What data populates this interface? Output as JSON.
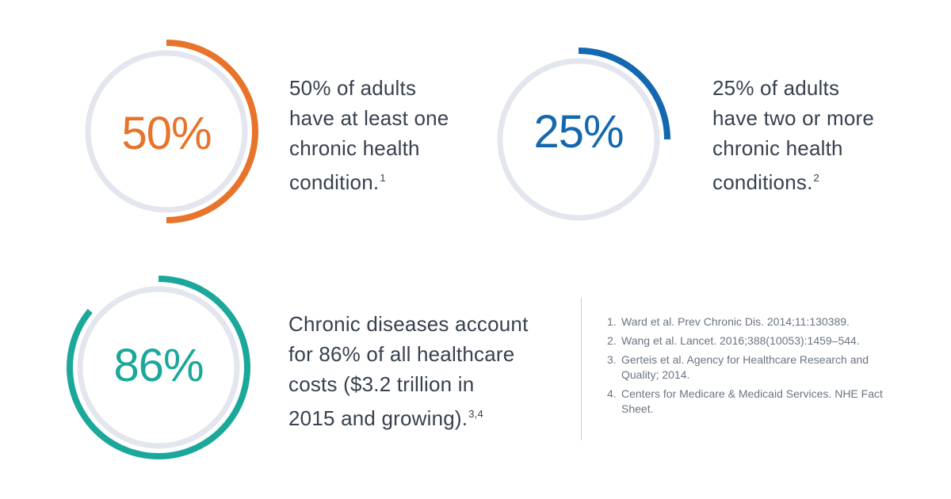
{
  "colors": {
    "track": "#e3e6ee",
    "orange": "#e8732a",
    "blue": "#1468b0",
    "teal": "#1ba89b",
    "text": "#37414f",
    "refs": "#6b7482"
  },
  "chart_data": [
    {
      "type": "donut",
      "value": 50,
      "unit": "%",
      "label": "50%",
      "color": "#e8732a",
      "text_lines": [
        "50% of adults",
        "have at least one",
        "chronic health",
        "condition."
      ],
      "footnote": "1"
    },
    {
      "type": "donut",
      "value": 25,
      "unit": "%",
      "label": "25%",
      "color": "#1468b0",
      "text_lines": [
        "25% of adults",
        "have two or more",
        "chronic health",
        "conditions."
      ],
      "footnote": "2"
    },
    {
      "type": "donut",
      "value": 86,
      "unit": "%",
      "label": "86%",
      "color": "#1ba89b",
      "text_lines": [
        "Chronic diseases account",
        "for 86% of all healthcare",
        "costs ($3.2 trillion in",
        "2015 and growing)."
      ],
      "footnote": "3,4"
    }
  ],
  "references": [
    {
      "num": "1.",
      "text": "Ward et al. Prev Chronic Dis. 2014;11:130389."
    },
    {
      "num": "2.",
      "text": "Wang et al. Lancet. 2016;388(10053):1459–544."
    },
    {
      "num": "3.",
      "text": "Gerteis et al. Agency for Healthcare Research and Quality; 2014."
    },
    {
      "num": "4.",
      "text": "Centers for Medicare & Medicaid Services. NHE Fact Sheet."
    }
  ]
}
